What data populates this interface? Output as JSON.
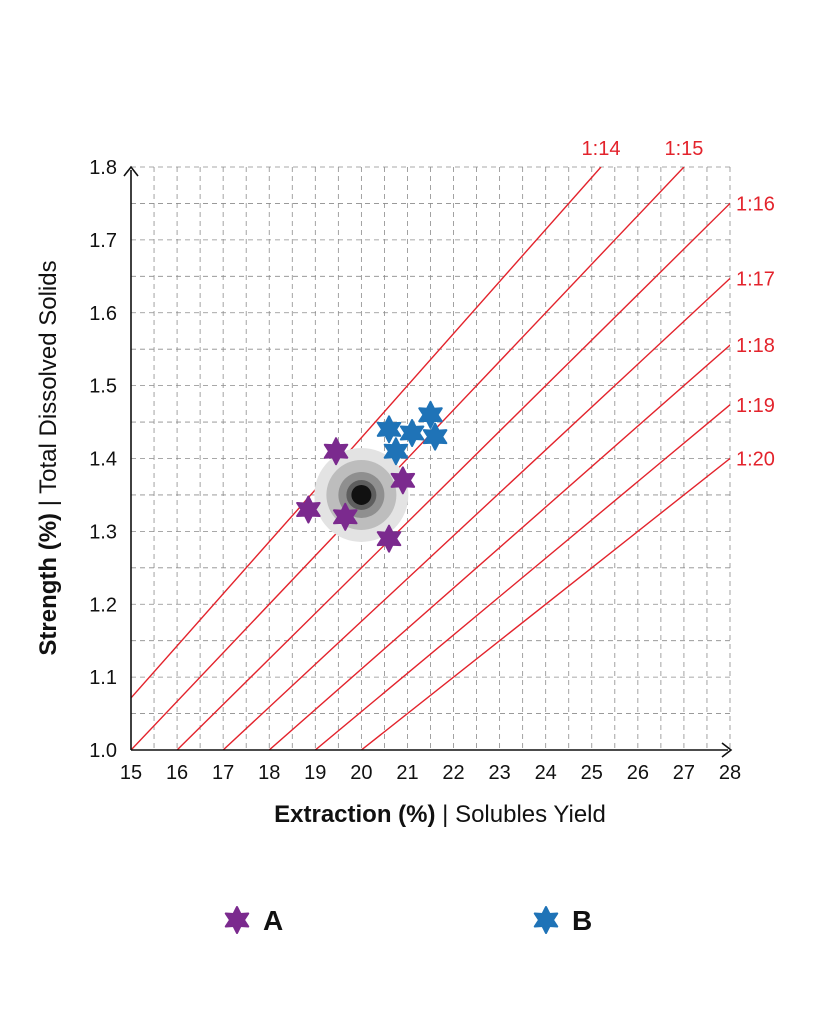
{
  "chart_data": {
    "type": "scatter",
    "xlabel_bold": "Extraction (%)",
    "xlabel_rest": " | Solubles Yield",
    "ylabel_bold": "Strength (%)",
    "ylabel_rest": " | Total Dissolved Solids",
    "xlim": [
      15,
      28
    ],
    "ylim": [
      1.0,
      1.8
    ],
    "x_ticks": [
      "15",
      "16",
      "17",
      "18",
      "19",
      "20",
      "21",
      "22",
      "23",
      "24",
      "25",
      "26",
      "27",
      "28"
    ],
    "y_ticks": [
      "1.0",
      "1.1",
      "1.2",
      "1.3",
      "1.4",
      "1.5",
      "1.6",
      "1.7",
      "1.8"
    ],
    "grid": true,
    "ratio_lines": [
      {
        "label": "1:14",
        "ratio": 14
      },
      {
        "label": "1:15",
        "ratio": 15
      },
      {
        "label": "1:16",
        "ratio": 16
      },
      {
        "label": "1:17",
        "ratio": 17
      },
      {
        "label": "1:18",
        "ratio": 18
      },
      {
        "label": "1:19",
        "ratio": 19
      },
      {
        "label": "1:20",
        "ratio": 20
      }
    ],
    "target": {
      "x": 20.0,
      "y": 1.35
    },
    "series": [
      {
        "name": "A",
        "color": "#7B2A8E",
        "points": [
          [
            19.45,
            1.41
          ],
          [
            18.85,
            1.33
          ],
          [
            19.65,
            1.32
          ],
          [
            20.9,
            1.37
          ],
          [
            20.6,
            1.29
          ]
        ]
      },
      {
        "name": "B",
        "color": "#1F73B7",
        "points": [
          [
            20.6,
            1.44
          ],
          [
            21.1,
            1.435
          ],
          [
            21.5,
            1.46
          ],
          [
            21.6,
            1.43
          ],
          [
            20.75,
            1.41
          ]
        ]
      }
    ],
    "legend_position": "bottom",
    "colors": {
      "ratio_line": "#E3232C",
      "grid": "#8c8c8c",
      "axis": "#111111"
    }
  }
}
